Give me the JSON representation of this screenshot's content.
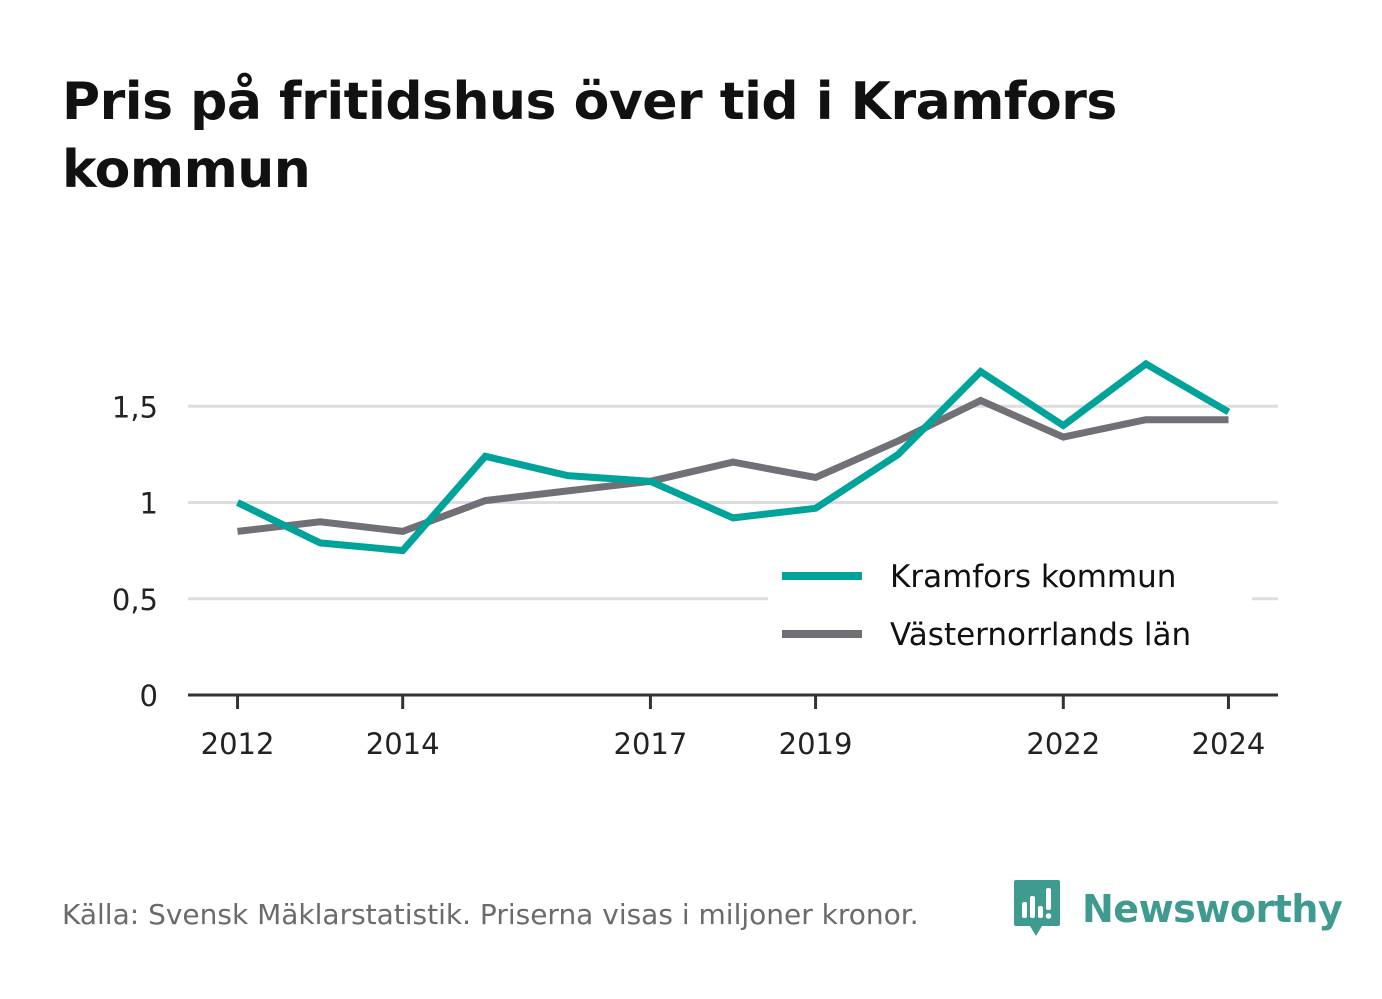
{
  "title": "Pris på fritidshus över tid i Kramfors kommun",
  "source": "Källa: Svensk Mäklarstatistik. Priserna visas i miljoner kronor.",
  "brand": "Newsworthy",
  "colors": {
    "kramfors": "#00a39a",
    "lan": "#707076",
    "grid": "#dddddd",
    "axis": "#333333",
    "brand": "#3f9a90"
  },
  "chart_data": {
    "type": "line",
    "title": "Pris på fritidshus över tid i Kramfors kommun",
    "xlabel": "",
    "ylabel": "",
    "x": [
      2012,
      2013,
      2014,
      2015,
      2016,
      2017,
      2018,
      2019,
      2020,
      2021,
      2022,
      2023,
      2024
    ],
    "x_ticks": [
      "2012",
      "2014",
      "2017",
      "2019",
      "2022",
      "2024"
    ],
    "y_ticks": [
      "0",
      "0,5",
      "1",
      "1,5"
    ],
    "ylim": [
      0,
      1.5
    ],
    "grid": true,
    "legend_position": "lower-right",
    "series": [
      {
        "name": "Kramfors kommun",
        "values": [
          1.0,
          0.79,
          0.75,
          1.24,
          1.14,
          1.11,
          0.92,
          0.97,
          1.25,
          1.68,
          1.4,
          1.72,
          1.47
        ]
      },
      {
        "name": "Västernorrlands län",
        "values": [
          0.85,
          0.9,
          0.85,
          1.01,
          1.06,
          1.11,
          1.21,
          1.13,
          1.32,
          1.53,
          1.34,
          1.43,
          1.43
        ]
      }
    ]
  }
}
